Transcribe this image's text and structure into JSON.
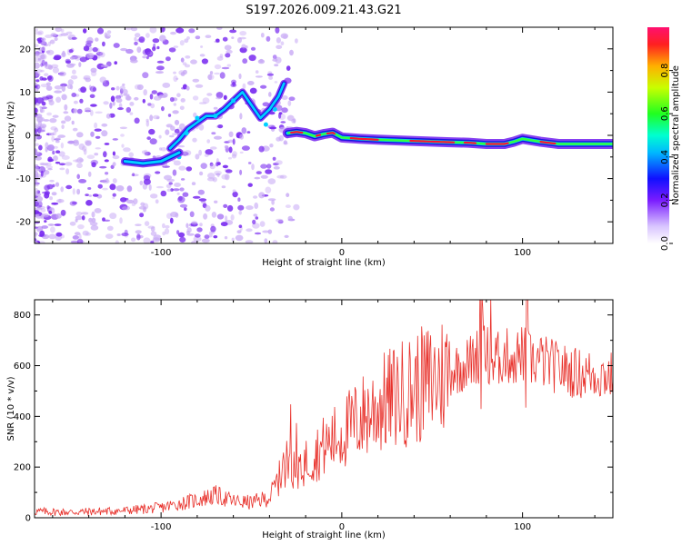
{
  "title": "S197.2026.009.21.43.G21",
  "colors": {
    "snr_line": "#e8302a",
    "track_outer": "#1a10e0",
    "track_mid": "#00d0ff",
    "track_core": "#30ff40",
    "track_peak": "#ff1030",
    "scatter": "#7a2cf0",
    "scatter_faint": "#c7a8f5"
  },
  "chart_data": [
    {
      "type": "heatmap",
      "title": "S197.2026.009.21.43.G21",
      "xlabel": "Height of straight line (km)",
      "ylabel": "Frequency (Hz)",
      "xlim": [
        -170,
        150
      ],
      "ylim": [
        -25,
        25
      ],
      "x_ticks": [
        -100,
        0,
        100
      ],
      "y_ticks": [
        -20,
        -10,
        0,
        10,
        20
      ],
      "colorbar": {
        "label": "Normalized spectral amplitude",
        "range": [
          0.0,
          1.0
        ],
        "ticks": [
          0.0,
          0.2,
          0.4,
          0.6,
          0.8
        ],
        "tick_labels": [
          "0.0",
          "0.2",
          "0.4",
          "0.6",
          "0.8"
        ]
      },
      "dominant_track": {
        "x": [
          -30,
          -25,
          -20,
          -15,
          -10,
          -5,
          0,
          10,
          20,
          40,
          60,
          70,
          80,
          85,
          90,
          95,
          100,
          110,
          120,
          150
        ],
        "y": [
          0.5,
          0.8,
          0.5,
          -0.2,
          0.3,
          0.6,
          -0.5,
          -0.8,
          -1.0,
          -1.3,
          -1.6,
          -1.7,
          -2.0,
          -2.0,
          -2.0,
          -1.5,
          -0.8,
          -1.5,
          -2.0,
          -2.0
        ]
      },
      "upper_branch": {
        "x": [
          -95,
          -90,
          -85,
          -80,
          -75,
          -70,
          -65,
          -60,
          -55,
          -50,
          -45,
          -40,
          -35,
          -32
        ],
        "y": [
          -3.0,
          -1.0,
          1.5,
          3.0,
          4.5,
          4.5,
          6.0,
          8.0,
          10.0,
          7.0,
          4.0,
          6.0,
          9.0,
          12.0
        ]
      },
      "lower_branch": {
        "x": [
          -120,
          -110,
          -100,
          -95,
          -90
        ],
        "y": [
          -6.0,
          -6.5,
          -6.0,
          -5.0,
          -4.0
        ]
      }
    },
    {
      "type": "line",
      "xlabel": "Height of straight line (km)",
      "ylabel": "SNR (10 * v/v)",
      "xlim": [
        -170,
        150
      ],
      "ylim": [
        0,
        860
      ],
      "x_ticks": [
        -100,
        0,
        100
      ],
      "y_ticks": [
        0,
        200,
        400,
        600,
        800
      ],
      "series": [
        {
          "name": "SNR",
          "x": [
            -170,
            -150,
            -120,
            -100,
            -80,
            -70,
            -60,
            -50,
            -40,
            -35,
            -30,
            -25,
            -20,
            -10,
            0,
            10,
            20,
            30,
            40,
            50,
            60,
            70,
            75,
            80,
            85,
            90,
            95,
            100,
            105,
            110,
            120,
            130,
            140,
            150
          ],
          "y": [
            25,
            22,
            28,
            40,
            70,
            90,
            65,
            60,
            80,
            150,
            220,
            200,
            220,
            280,
            330,
            390,
            440,
            480,
            510,
            540,
            580,
            610,
            640,
            650,
            620,
            640,
            630,
            650,
            620,
            620,
            590,
            570,
            565,
            560
          ]
        }
      ]
    }
  ]
}
